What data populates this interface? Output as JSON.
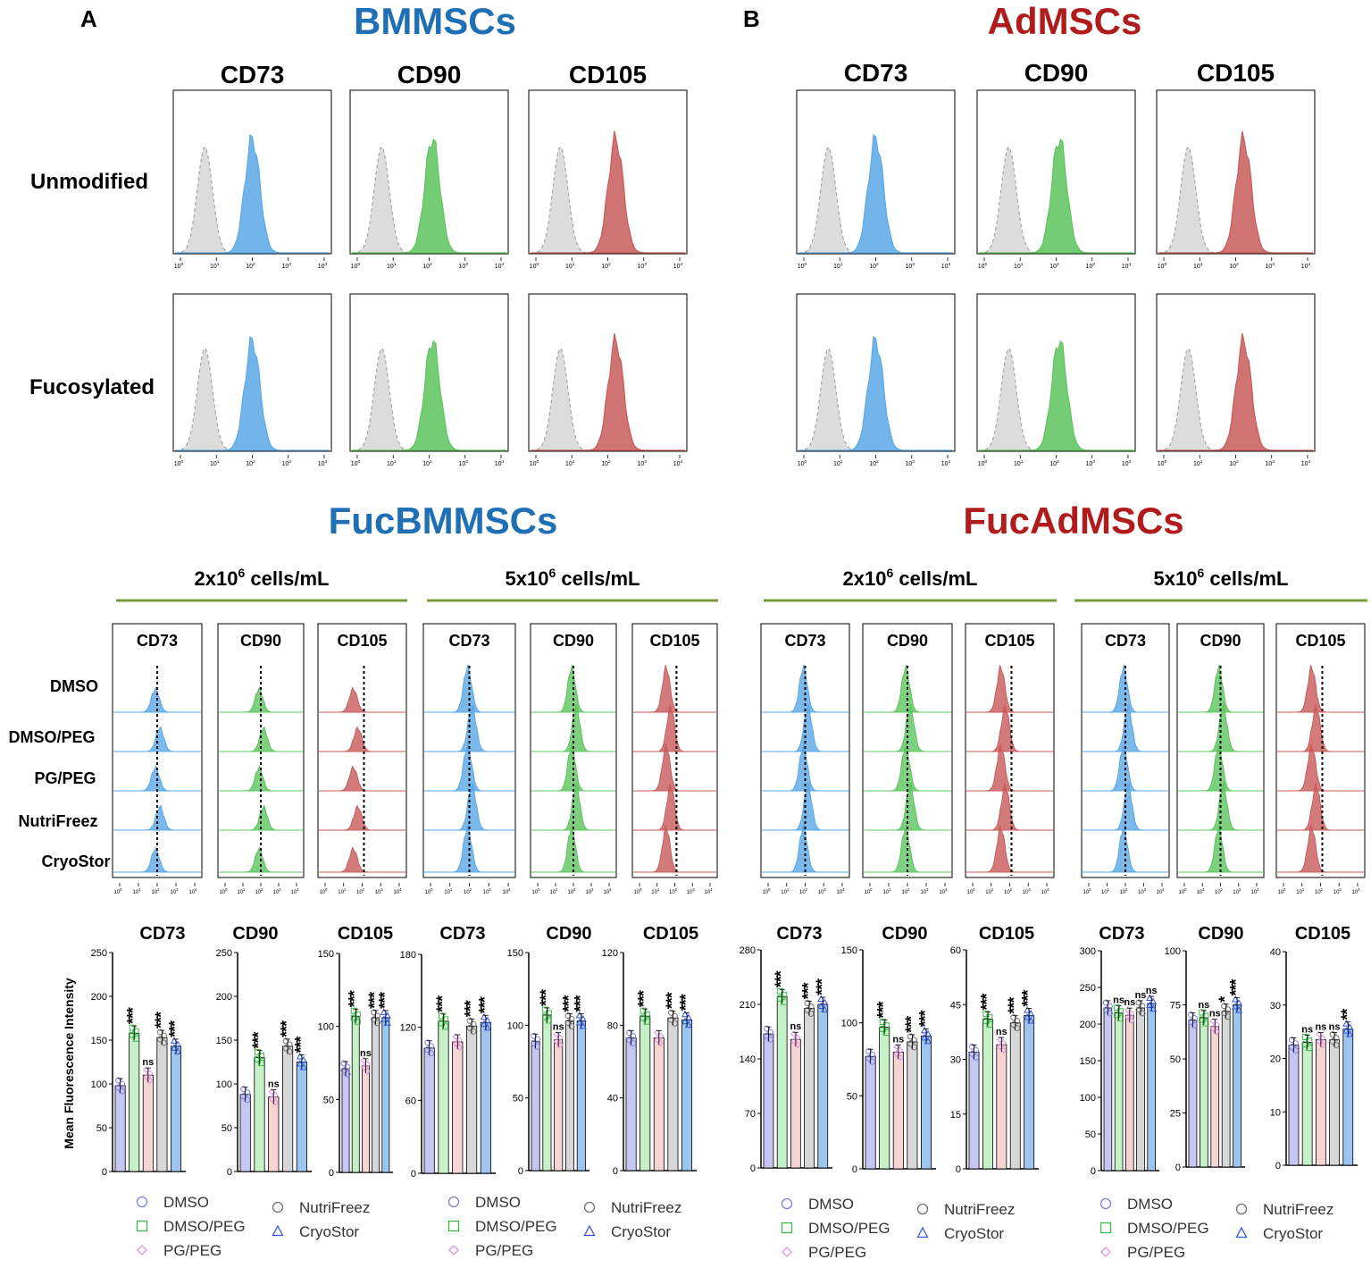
{
  "figure": {
    "panel_a_letter": "A",
    "panel_b_letter": "B",
    "panel_a_title": "BMMSCs",
    "panel_b_title": "AdMSCs",
    "lower_a_title": "FucBMMSCs",
    "lower_b_title": "FucAdMSCs",
    "row_labels": [
      "Unmodified",
      "Fucosylated"
    ],
    "markers": [
      "CD73",
      "CD90",
      "CD105"
    ],
    "concentration_labels": {
      "c2": {
        "prefix": "2x10",
        "exp": "6",
        "suffix": " cells/mL"
      },
      "c5": {
        "prefix": "5x10",
        "exp": "6",
        "suffix": " cells/mL"
      }
    },
    "conditions": [
      "DMSO",
      "DMSO/PEG",
      "PG/PEG",
      "NutriFreez",
      "CryoStor"
    ],
    "y_axis_label": "Mean Fluorescence Intensity",
    "log_ticks": [
      "0",
      "1",
      "2",
      "3",
      "4"
    ],
    "log_tick_base": "10",
    "legend": [
      "DMSO",
      "DMSO/PEG",
      "PG/PEG",
      "NutriFreez",
      "CryoStor"
    ]
  },
  "colors": {
    "bm_title": "#1f6fb5",
    "ad_title": "#b01c1c",
    "cd73": "#5aa8e6",
    "cd90": "#5cc45c",
    "cd105": "#c85a5a",
    "green_rule": "#7a9a3a",
    "series": [
      "#8080e0",
      "#3cb84a",
      "#e090e0",
      "#707070",
      "#3355dd"
    ],
    "bar_fill": [
      "#c6c6f5",
      "#c6f0c6",
      "#f7d4d4",
      "#d7d7d7",
      "#9cc6ef"
    ]
  },
  "chart_data": [
    {
      "group": "FucBMMSCs",
      "concentration": "2x10^6 cells/mL",
      "type": "bar",
      "title": "CD73",
      "ylabel": "Mean Fluorescence Intensity",
      "ylim": [
        0,
        250
      ],
      "ticks": [
        0,
        50,
        100,
        150,
        200,
        250
      ],
      "categories": [
        "DMSO",
        "DMSO/PEG",
        "PG/PEG",
        "NutriFreez",
        "CryoStor"
      ],
      "values": [
        98,
        158,
        110,
        153,
        143
      ],
      "significance": [
        "",
        "***",
        "ns",
        "***",
        "***"
      ]
    },
    {
      "group": "FucBMMSCs",
      "concentration": "2x10^6 cells/mL",
      "type": "bar",
      "title": "CD90",
      "ylim": [
        0,
        250
      ],
      "ticks": [
        0,
        50,
        100,
        150,
        200,
        250
      ],
      "categories": [
        "DMSO",
        "DMSO/PEG",
        "PG/PEG",
        "NutriFreez",
        "CryoStor"
      ],
      "values": [
        88,
        130,
        85,
        143,
        125
      ],
      "significance": [
        "",
        "***",
        "ns",
        "***",
        "***"
      ]
    },
    {
      "group": "FucBMMSCs",
      "concentration": "2x10^6 cells/mL",
      "type": "bar",
      "title": "CD105",
      "ylim": [
        0,
        150
      ],
      "ticks": [
        0,
        50,
        100,
        150
      ],
      "categories": [
        "DMSO",
        "DMSO/PEG",
        "PG/PEG",
        "NutriFreez",
        "CryoStor"
      ],
      "values": [
        71,
        107,
        73,
        106,
        106
      ],
      "significance": [
        "",
        "***",
        "ns",
        "***",
        "***"
      ]
    },
    {
      "group": "FucBMMSCs",
      "concentration": "5x10^6 cells/mL",
      "type": "bar",
      "title": "CD73",
      "ylim": [
        0,
        180
      ],
      "ticks": [
        0,
        60,
        120,
        180
      ],
      "categories": [
        "DMSO",
        "DMSO/PEG",
        "PG/PEG",
        "NutriFreez",
        "CryoStor"
      ],
      "values": [
        103,
        125,
        108,
        121,
        124
      ],
      "significance": [
        "",
        "***",
        "",
        "***",
        "***"
      ]
    },
    {
      "group": "FucBMMSCs",
      "concentration": "5x10^6 cells/mL",
      "type": "bar",
      "title": "CD90",
      "ylim": [
        0,
        150
      ],
      "ticks": [
        0,
        50,
        100,
        150
      ],
      "categories": [
        "DMSO",
        "DMSO/PEG",
        "PG/PEG",
        "NutriFreez",
        "CryoStor"
      ],
      "values": [
        89,
        107,
        90,
        103,
        103
      ],
      "significance": [
        "",
        "***",
        "ns",
        "***",
        "***"
      ]
    },
    {
      "group": "FucBMMSCs",
      "concentration": "5x10^6 cells/mL",
      "type": "bar",
      "title": "CD105",
      "ylim": [
        0,
        120
      ],
      "ticks": [
        0,
        40,
        80,
        120
      ],
      "categories": [
        "DMSO",
        "DMSO/PEG",
        "PG/PEG",
        "NutriFreez",
        "CryoStor"
      ],
      "values": [
        73,
        85,
        73,
        84,
        83
      ],
      "significance": [
        "",
        "***",
        "",
        "***",
        "***"
      ]
    },
    {
      "group": "FucAdMSCs",
      "concentration": "2x10^6 cells/mL",
      "type": "bar",
      "title": "CD73",
      "ylim": [
        0,
        280
      ],
      "ticks": [
        0,
        70,
        140,
        210,
        280
      ],
      "categories": [
        "DMSO",
        "DMSO/PEG",
        "PG/PEG",
        "NutriFreez",
        "CryoStor"
      ],
      "values": [
        172,
        220,
        165,
        205,
        210
      ],
      "significance": [
        "",
        "***",
        "ns",
        "***",
        "***"
      ]
    },
    {
      "group": "FucAdMSCs",
      "concentration": "2x10^6 cells/mL",
      "type": "bar",
      "title": "CD90",
      "ylim": [
        0,
        150
      ],
      "ticks": [
        0,
        50,
        100,
        150
      ],
      "categories": [
        "DMSO",
        "DMSO/PEG",
        "PG/PEG",
        "NutriFreez",
        "CryoStor"
      ],
      "values": [
        77,
        97,
        80,
        87,
        91
      ],
      "significance": [
        "",
        "***",
        "ns",
        "***",
        "***"
      ]
    },
    {
      "group": "FucAdMSCs",
      "concentration": "2x10^6 cells/mL",
      "type": "bar",
      "title": "CD105",
      "ylim": [
        0,
        60
      ],
      "ticks": [
        0,
        15,
        30,
        45,
        60
      ],
      "categories": [
        "DMSO",
        "DMSO/PEG",
        "PG/PEG",
        "NutriFreez",
        "CryoStor"
      ],
      "values": [
        32,
        41,
        34,
        40,
        42
      ],
      "significance": [
        "",
        "***",
        "ns",
        "***",
        "***"
      ]
    },
    {
      "group": "FucAdMSCs",
      "concentration": "5x10^6 cells/mL",
      "type": "bar",
      "title": "CD73",
      "ylim": [
        0,
        300
      ],
      "ticks": [
        0,
        50,
        100,
        150,
        200,
        250,
        300
      ],
      "categories": [
        "DMSO",
        "DMSO/PEG",
        "PG/PEG",
        "NutriFreez",
        "CryoStor"
      ],
      "values": [
        222,
        215,
        212,
        222,
        228
      ],
      "significance": [
        "",
        "ns",
        "ns",
        "ns",
        "ns"
      ]
    },
    {
      "group": "FucAdMSCs",
      "concentration": "5x10^6 cells/mL",
      "type": "bar",
      "title": "CD90",
      "ylim": [
        0,
        100
      ],
      "ticks": [
        0,
        25,
        50,
        75,
        100
      ],
      "categories": [
        "DMSO",
        "DMSO/PEG",
        "PG/PEG",
        "NutriFreez",
        "CryoStor"
      ],
      "values": [
        68,
        69,
        65,
        72,
        75
      ],
      "significance": [
        "",
        "ns",
        "ns",
        "*",
        "***"
      ]
    },
    {
      "group": "FucAdMSCs",
      "concentration": "5x10^6 cells/mL",
      "type": "bar",
      "title": "CD105",
      "ylim": [
        0,
        40
      ],
      "ticks": [
        0,
        10,
        20,
        30,
        40
      ],
      "categories": [
        "DMSO",
        "DMSO/PEG",
        "PG/PEG",
        "NutriFreez",
        "CryoStor"
      ],
      "values": [
        22.5,
        23,
        23.5,
        23.5,
        25.5
      ],
      "significance": [
        "",
        "ns",
        "ns",
        "ns",
        "**"
      ]
    }
  ]
}
